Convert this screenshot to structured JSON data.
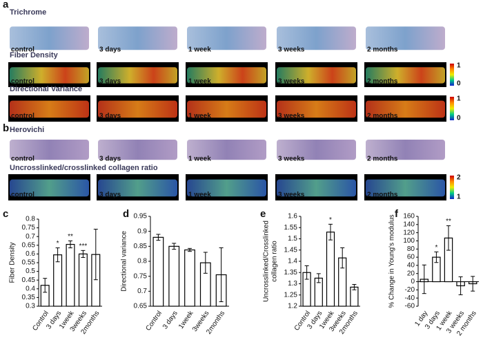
{
  "figure": {
    "panel_letters": [
      "a",
      "b",
      "c",
      "d",
      "e",
      "f"
    ],
    "rows": [
      {
        "title": "Trichrome",
        "captions": [
          "control",
          "3 days",
          "1 week",
          "3 weeks",
          "2 months"
        ]
      },
      {
        "title": "Fiber Density",
        "captions": [
          "control",
          "3 days",
          "1 week",
          "3 weeks",
          "2 months"
        ],
        "colorbar": [
          1,
          0
        ]
      },
      {
        "title": "Directional Variance",
        "captions": [
          "control",
          "3 days",
          "1 week",
          "3 weeks",
          "2 months"
        ],
        "colorbar": [
          1,
          0
        ]
      },
      {
        "title": "Herovichi",
        "captions": [
          "control",
          "3 days",
          "1 week",
          "3 weeks",
          "2 months"
        ]
      },
      {
        "title": "Uncrosslinked/crosslinked collagen ratio",
        "captions": [
          "control",
          "3 days",
          "1 week",
          "3 weeks",
          "2 months"
        ],
        "colorbar": [
          2,
          1
        ]
      }
    ]
  },
  "chart_data": [
    {
      "type": "bar",
      "ylabel": [
        "Fiber Density"
      ],
      "categories": [
        "Control",
        "3 days",
        "1week",
        "3weeks",
        "2months"
      ],
      "values": [
        0.42,
        0.595,
        0.655,
        0.6,
        0.597
      ],
      "errors": [
        0.04,
        0.04,
        0.02,
        0.02,
        0.145
      ],
      "annotations": [
        null,
        "*",
        "**",
        "***",
        null
      ],
      "ylim": [
        0.3,
        0.8
      ],
      "yticks": [
        0.3,
        0.35,
        0.4,
        0.45,
        0.5,
        0.55,
        0.6,
        0.65,
        0.7,
        0.75,
        0.8
      ]
    },
    {
      "type": "bar",
      "ylabel": [
        "Directional variance"
      ],
      "categories": [
        "Control",
        "3 days",
        "1week",
        "3weeks",
        "2months"
      ],
      "values": [
        0.88,
        0.85,
        0.838,
        0.795,
        0.755
      ],
      "errors": [
        0.01,
        0.01,
        0.005,
        0.035,
        0.09
      ],
      "ylim": [
        0.65,
        0.95
      ],
      "yticks": [
        0.65,
        0.7,
        0.75,
        0.8,
        0.85,
        0.9,
        0.95
      ]
    },
    {
      "type": "bar",
      "ylabel": [
        "Uncrosslinked/Crosslinked",
        "collagen ratio"
      ],
      "categories": [
        "Control",
        "3 days",
        "1week",
        "3weeks",
        "2months"
      ],
      "values": [
        1.35,
        1.325,
        1.53,
        1.415,
        1.285
      ],
      "errors": [
        0.03,
        0.02,
        0.035,
        0.045,
        0.012
      ],
      "annotations": [
        null,
        null,
        "*",
        null,
        null
      ],
      "ylim": [
        1.2,
        1.6
      ],
      "yticks": [
        1.2,
        1.25,
        1.3,
        1.35,
        1.4,
        1.45,
        1.5,
        1.55,
        1.6
      ]
    },
    {
      "type": "bar",
      "ylabel": [
        "% Change in Young's modulus"
      ],
      "categories": [
        "1 day",
        "3 days",
        "1 week",
        "3 weeks",
        "2 months"
      ],
      "values": [
        6,
        60,
        107,
        -10,
        -5
      ],
      "errors": [
        35,
        13,
        30,
        22,
        18
      ],
      "annotations": [
        null,
        "*",
        "**",
        null,
        null
      ],
      "ylim": [
        -60,
        160
      ],
      "yticks": [
        -60,
        -40,
        -20,
        0,
        20,
        40,
        60,
        80,
        100,
        120,
        140,
        160
      ]
    }
  ]
}
